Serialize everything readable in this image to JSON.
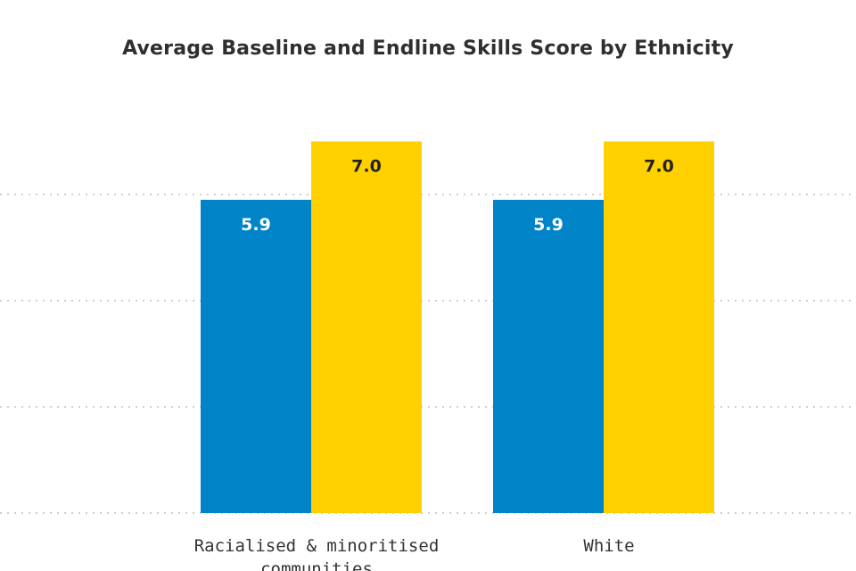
{
  "chart_data": {
    "type": "bar",
    "title": "Average Baseline and Endline Skills Score by Ethnicity",
    "categories": [
      "Racialised & minoritised communities",
      "White"
    ],
    "category_label_lines": [
      [
        "Racialised & minoritised",
        "communities"
      ],
      [
        "White"
      ]
    ],
    "series": [
      {
        "values": [
          5.9,
          5.9
        ],
        "labels": [
          "5.9",
          "5.9"
        ],
        "color": "#0084c7",
        "label_color": "#ffffff"
      },
      {
        "values": [
          7.0,
          7.0
        ],
        "labels": [
          "7.0",
          "7.0"
        ],
        "color": "#ffd100",
        "label_color": "#222222"
      }
    ],
    "ylim": [
      0,
      8
    ],
    "grid": true,
    "legend": "none"
  }
}
